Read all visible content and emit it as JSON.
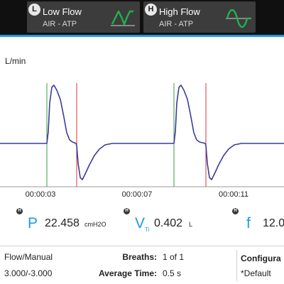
{
  "header": {
    "low_flow": {
      "badge": "L",
      "title": "Low Flow",
      "subtitle": "AIR - ATP",
      "icon": "low-flow-wave-icon",
      "icon_color": "#22b14c"
    },
    "high_flow": {
      "badge": "H",
      "title": "High Flow",
      "subtitle": "AIR - ATP",
      "icon": "high-flow-wave-icon",
      "icon_color": "#22b14c"
    },
    "accent_color": "#1e9be2"
  },
  "chart": {
    "unit_label": "L/min",
    "x_ticks": [
      "00:00:03",
      "00:00:07",
      "00:00:11"
    ],
    "trace_color": "#3b3b9a",
    "inhale_marker_color": "#2ea043",
    "exhale_marker_color": "#d9363e"
  },
  "readouts": {
    "pressure": {
      "badge": "H",
      "symbol": "P",
      "value": "22.458",
      "unit": "cmH2O"
    },
    "volume": {
      "badge": "H",
      "symbol": "V",
      "subscript": "Ti",
      "value": "0.402",
      "unit": "L"
    },
    "frequency": {
      "badge": "H",
      "symbol": "f",
      "value": "12.0"
    }
  },
  "footer": {
    "mode": "Flow/Manual",
    "range": "3.000/-3.000",
    "breaths_label": "Breaths:",
    "breaths_value": "1 of 1",
    "avg_time_label": "Average Time:",
    "avg_time_value": "0.5 s",
    "config_label": "Configura",
    "config_value": "*Default"
  }
}
